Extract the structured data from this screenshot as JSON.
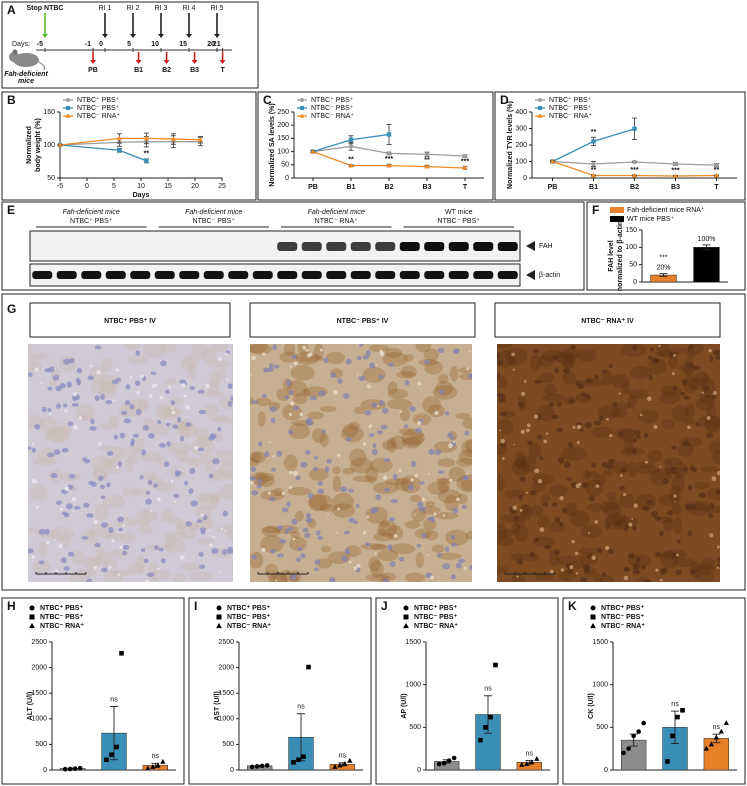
{
  "timeline": {
    "panel": "A",
    "stop_label": "Stop NTBC",
    "stop_day": -5,
    "days_label": "Days:",
    "days": [
      -5,
      -1,
      0,
      5,
      10,
      15,
      20,
      21
    ],
    "injections": [
      "RI 1",
      "RI 2",
      "RI 3",
      "RI 4",
      "RI 5"
    ],
    "injection_days": [
      0,
      5,
      10,
      15,
      20
    ],
    "bleeds": [
      "PB",
      "B1",
      "B2",
      "B3",
      "T"
    ],
    "bleed_days": [
      -1,
      6,
      11,
      16,
      21
    ],
    "subject": [
      "Fah-deficient",
      "mice"
    ]
  },
  "blot": {
    "panel": "E",
    "groups": [
      [
        "Fah-deficient mice",
        "NTBC⁺ PBS⁺"
      ],
      [
        "Fah-deficient mice",
        "NTBC⁻ PBS⁺"
      ],
      [
        "Fah-deficient mice",
        "NTBC⁻ RNA⁺"
      ],
      [
        "WT mice",
        "NTBC⁻ PBS⁺"
      ]
    ],
    "bands": [
      "FAH",
      "β-actin"
    ]
  },
  "histology": {
    "panel": "G",
    "titles": [
      "NTBC⁺ PBS⁺ IV",
      "NTBC⁻ PBS⁺ IV",
      "NTBC⁻ RNA⁺ IV"
    ]
  },
  "chart_data": [
    {
      "panel": "B",
      "type": "line",
      "ylabel": [
        "Normalized",
        "body weight (%)"
      ],
      "xlabel": "Days",
      "xlim": [
        -5,
        25
      ],
      "xticks": [
        -5,
        0,
        5,
        10,
        15,
        20,
        25
      ],
      "ylim": [
        50,
        150
      ],
      "yticks": [
        50,
        100,
        150
      ],
      "legend": "upper left",
      "series": [
        {
          "name": "NTBC⁺ PBS⁺",
          "color": "#9e9e9e",
          "marker": "circle",
          "x": [
            -5,
            6,
            11,
            16,
            21
          ],
          "values": [
            100,
            104,
            105,
            105,
            105
          ],
          "errors": [
            0,
            6,
            8,
            9,
            6
          ]
        },
        {
          "name": "NTBC⁻ PBS⁺",
          "color": "#3a8fb7",
          "marker": "square",
          "x": [
            -5,
            6,
            11
          ],
          "values": [
            100,
            92,
            76
          ],
          "errors": [
            0,
            3,
            3
          ],
          "annotations": [
            null,
            null,
            "**"
          ]
        },
        {
          "name": "NTBC⁻ RNA⁺",
          "color": "#f08a24",
          "marker": "triangle",
          "x": [
            -5,
            6,
            11,
            16,
            21
          ],
          "values": [
            100,
            110,
            110,
            109,
            108
          ],
          "errors": [
            0,
            7,
            8,
            8,
            5
          ]
        }
      ]
    },
    {
      "panel": "C",
      "type": "line",
      "ylabel": "Normalized SA levels (%)",
      "categories": [
        "PB",
        "B1",
        "B2",
        "B3",
        "T"
      ],
      "ylim": [
        0,
        250
      ],
      "yticks": [
        0,
        50,
        100,
        150,
        200,
        250
      ],
      "legend": "upper left",
      "series": [
        {
          "name": "NTBC⁺ PBS⁺",
          "color": "#9e9e9e",
          "marker": "circle",
          "values": [
            100,
            120,
            93,
            90,
            83
          ],
          "errors": [
            3,
            15,
            5,
            8,
            5
          ]
        },
        {
          "name": "NTBC⁻ PBS⁺",
          "color": "#3a8fb7",
          "marker": "square",
          "values": [
            100,
            145,
            165,
            null,
            null
          ],
          "errors": [
            3,
            15,
            38,
            null,
            null
          ]
        },
        {
          "name": "NTBC⁻ RNA⁺",
          "color": "#f08a24",
          "marker": "triangle",
          "values": [
            100,
            47,
            47,
            43,
            38
          ],
          "errors": [
            3,
            3,
            5,
            5,
            5
          ],
          "annotations": [
            null,
            "**",
            "***",
            "**",
            "***"
          ]
        }
      ]
    },
    {
      "panel": "D",
      "type": "line",
      "ylabel": "Normalized TYR levels (%)",
      "categories": [
        "PB",
        "B1",
        "B2",
        "B3",
        "T"
      ],
      "ylim": [
        0,
        400
      ],
      "yticks": [
        0,
        100,
        200,
        300,
        400
      ],
      "legend": "upper left",
      "series": [
        {
          "name": "NTBC⁺ PBS⁺",
          "color": "#9e9e9e",
          "marker": "circle",
          "values": [
            100,
            85,
            97,
            85,
            78
          ],
          "errors": [
            5,
            15,
            5,
            8,
            10
          ]
        },
        {
          "name": "NTBC⁻ PBS⁺",
          "color": "#3a8fb7",
          "marker": "square",
          "values": [
            100,
            222,
            298,
            null,
            null
          ],
          "errors": [
            5,
            25,
            65,
            null,
            null
          ],
          "annotations": [
            null,
            "**",
            null,
            null,
            null
          ]
        },
        {
          "name": "NTBC⁻ RNA⁺",
          "color": "#f08a24",
          "marker": "triangle",
          "values": [
            100,
            15,
            15,
            12,
            15
          ],
          "errors": [
            3,
            3,
            3,
            3,
            3
          ],
          "annotations": [
            null,
            "**",
            "***",
            "***",
            "**"
          ]
        }
      ]
    },
    {
      "panel": "F",
      "type": "bar",
      "ylabel": [
        "FAH level",
        "normalized to β-actin"
      ],
      "ylim": [
        0,
        150
      ],
      "yticks": [
        0,
        50,
        100,
        150
      ],
      "legend": "upper left",
      "series": [
        {
          "name": "Fah-deficient mice RNA⁺",
          "color": "#e8822a",
          "values": [
            20
          ],
          "value_labels": [
            "20%"
          ],
          "errors": [
            4
          ],
          "annotations": [
            "***"
          ]
        },
        {
          "name": "WT mice PBS⁺",
          "color": "#000000",
          "values": [
            100
          ],
          "value_labels": [
            "100%"
          ],
          "errors": [
            7
          ]
        }
      ]
    },
    {
      "panel": "H",
      "type": "bar",
      "ylabel": "ALT (U/l)",
      "ylim": [
        0,
        2500
      ],
      "yticks": [
        0,
        500,
        1000,
        1500,
        2000,
        2500
      ],
      "legend": "upper left",
      "series": [
        {
          "name": "NTBC⁺ PBS⁺",
          "color": "#8c8c8c",
          "marker": "circle",
          "values": [
            30
          ],
          "errors": [
            5
          ],
          "points": [
            15,
            20,
            25,
            35
          ]
        },
        {
          "name": "NTBC⁻ PBS⁺",
          "color": "#3a8fb7",
          "marker": "square",
          "values": [
            720
          ],
          "errors": [
            520
          ],
          "points": [
            200,
            300,
            450,
            2280
          ],
          "annotations": [
            "ns"
          ]
        },
        {
          "name": "NTBC⁻ RNA⁺",
          "color": "#e8822a",
          "marker": "triangle",
          "values": [
            90
          ],
          "errors": [
            40
          ],
          "points": [
            30,
            60,
            90,
            160
          ],
          "annotations": [
            "ns"
          ]
        }
      ]
    },
    {
      "panel": "I",
      "type": "bar",
      "ylabel": "AST (U/l)",
      "ylim": [
        0,
        2500
      ],
      "yticks": [
        0,
        500,
        1000,
        1500,
        2000,
        2500
      ],
      "legend": "upper left",
      "series": [
        {
          "name": "NTBC⁺ PBS⁺",
          "color": "#8c8c8c",
          "marker": "circle",
          "values": [
            80
          ],
          "errors": [
            10
          ],
          "points": [
            60,
            70,
            80,
            90
          ]
        },
        {
          "name": "NTBC⁻ PBS⁺",
          "color": "#3a8fb7",
          "marker": "square",
          "values": [
            640
          ],
          "errors": [
            460
          ],
          "points": [
            150,
            200,
            260,
            2010
          ],
          "annotations": [
            "ns"
          ]
        },
        {
          "name": "NTBC⁻ RNA⁺",
          "color": "#e8822a",
          "marker": "triangle",
          "values": [
            110
          ],
          "errors": [
            30
          ],
          "points": [
            60,
            90,
            120,
            180
          ],
          "annotations": [
            "ns"
          ]
        }
      ]
    },
    {
      "panel": "J",
      "type": "bar",
      "ylabel": "AP (U/l)",
      "ylim": [
        0,
        1500
      ],
      "yticks": [
        0,
        500,
        1000,
        1500
      ],
      "legend": "upper left",
      "series": [
        {
          "name": "NTBC⁺ PBS⁺",
          "color": "#8c8c8c",
          "marker": "circle",
          "values": [
            100
          ],
          "errors": [
            20
          ],
          "points": [
            70,
            80,
            110,
            140
          ]
        },
        {
          "name": "NTBC⁻ PBS⁺",
          "color": "#3a8fb7",
          "marker": "square",
          "values": [
            650
          ],
          "errors": [
            220
          ],
          "points": [
            350,
            500,
            620,
            1230
          ],
          "annotations": [
            "ns"
          ]
        },
        {
          "name": "NTBC⁻ RNA⁺",
          "color": "#e8822a",
          "marker": "triangle",
          "values": [
            90
          ],
          "errors": [
            20
          ],
          "points": [
            60,
            70,
            90,
            130
          ],
          "annotations": [
            "ns"
          ]
        }
      ]
    },
    {
      "panel": "K",
      "type": "bar",
      "ylabel": "CK (U/l)",
      "ylim": [
        0,
        1500
      ],
      "yticks": [
        0,
        500,
        1000,
        1500
      ],
      "legend": "upper left",
      "series": [
        {
          "name": "NTBC⁺ PBS⁺",
          "color": "#8c8c8c",
          "marker": "circle",
          "values": [
            350
          ],
          "errors": [
            70
          ],
          "points": [
            200,
            250,
            400,
            450,
            550
          ]
        },
        {
          "name": "NTBC⁻ PBS⁺",
          "color": "#3a8fb7",
          "marker": "square",
          "values": [
            500
          ],
          "errors": [
            190
          ],
          "points": [
            100,
            400,
            620,
            700
          ],
          "annotations": [
            "ns"
          ]
        },
        {
          "name": "NTBC⁻ RNA⁺",
          "color": "#e8822a",
          "marker": "triangle",
          "values": [
            370
          ],
          "errors": [
            50
          ],
          "points": [
            250,
            300,
            380,
            450,
            550
          ],
          "annotations": [
            "ns"
          ]
        }
      ]
    }
  ]
}
